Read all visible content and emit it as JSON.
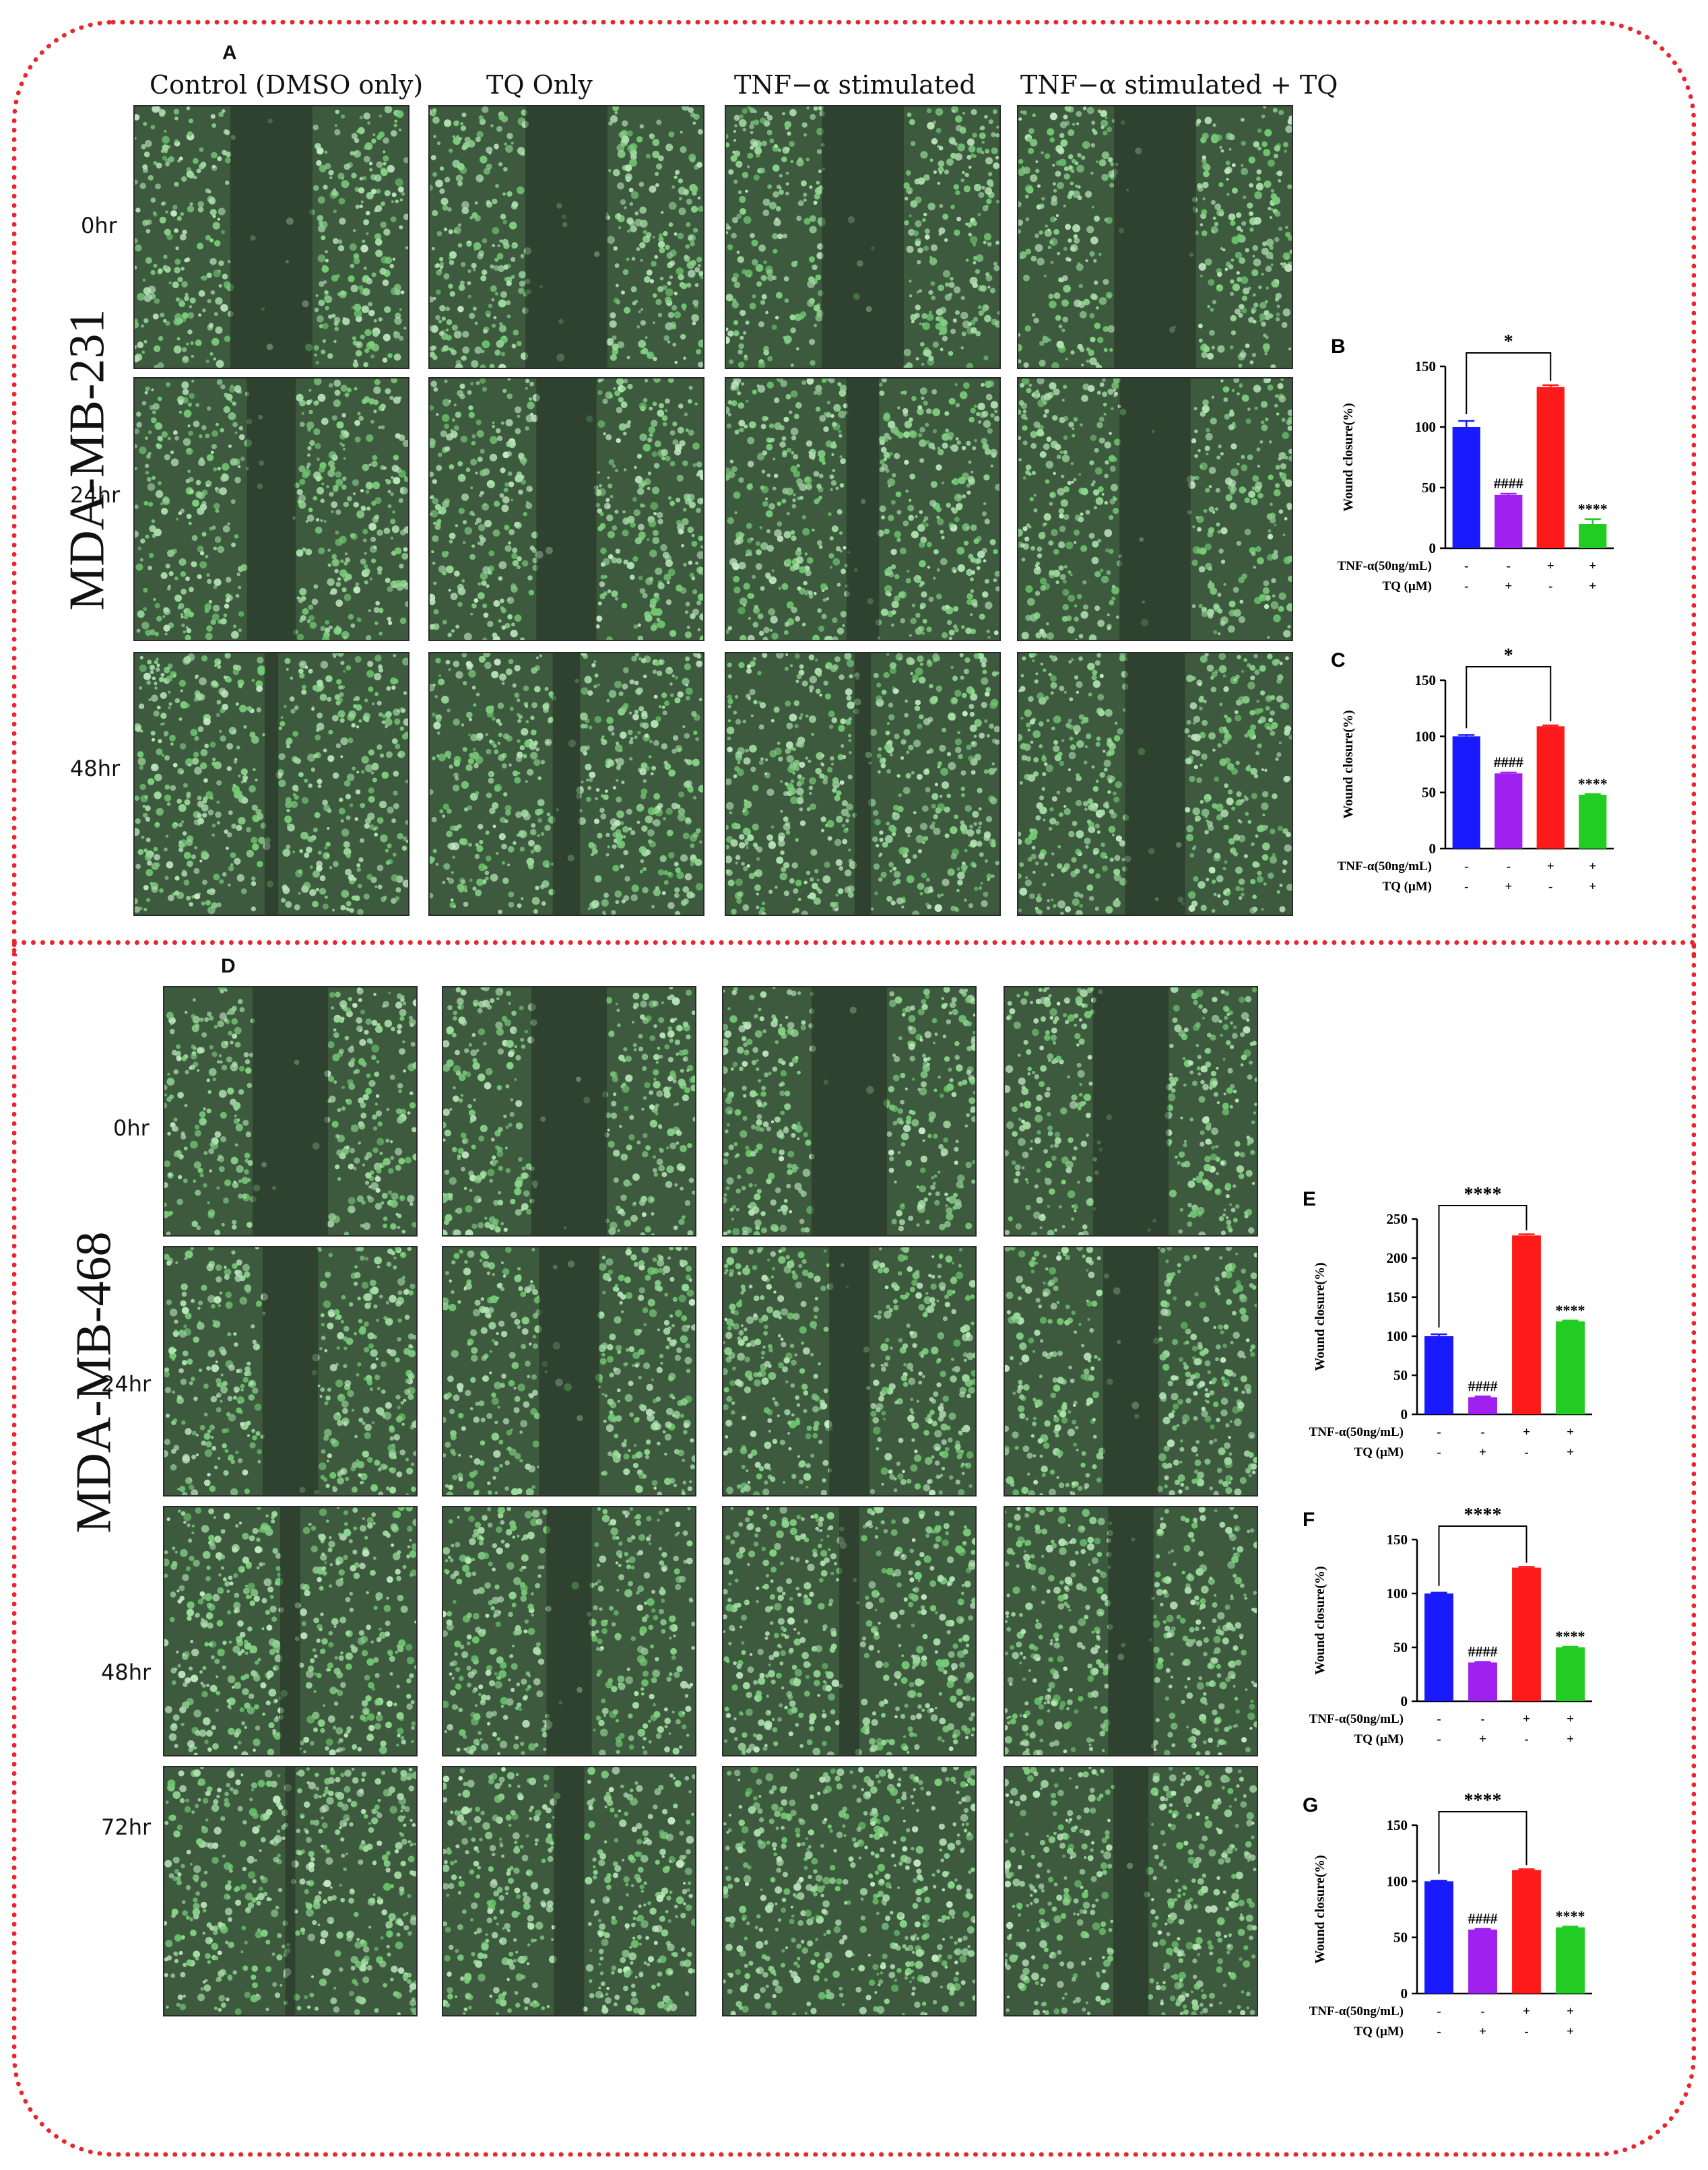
{
  "figure": {
    "panel_A": "A",
    "panel_D": "D",
    "cell_line_top": "MDA-MB-231",
    "cell_line_bottom": "MDA-MB-468",
    "columns": [
      "Control (DMSO only)",
      "TQ Only",
      "TNF−α stimulated",
      "TNF−α stimulated + TQ"
    ],
    "rows_top": [
      "0hr",
      "24hr",
      "48hr"
    ],
    "rows_bottom": [
      "0hr",
      "24hr",
      "48hr",
      "72hr"
    ]
  },
  "colors": {
    "frame": "#e8262d",
    "control": "#1a1aff",
    "tq": "#a020f0",
    "tnf": "#ff1a1a",
    "tnf_tq": "#22cc22",
    "cell_green": "#7ec88a",
    "gap_dark": "#243024"
  },
  "micrographs": {
    "top": [
      [
        0.3,
        0.3,
        0.3,
        0.3
      ],
      [
        0.18,
        0.22,
        0.12,
        0.26
      ],
      [
        0.05,
        0.1,
        0.06,
        0.22
      ]
    ],
    "bottom": [
      [
        0.3,
        0.3,
        0.3,
        0.3
      ],
      [
        0.22,
        0.24,
        0.16,
        0.22
      ],
      [
        0.08,
        0.18,
        0.08,
        0.18
      ],
      [
        0.04,
        0.12,
        0.0,
        0.14
      ]
    ]
  },
  "chart_data": [
    {
      "panel": "B",
      "type": "bar",
      "ylabel": "Wound closure(%)",
      "ylim": [
        0,
        150
      ],
      "yticks": [
        0,
        50,
        100,
        150
      ],
      "values": [
        100,
        44,
        133,
        20
      ],
      "errors": [
        5,
        1,
        1.5,
        4
      ],
      "annotations": [
        "",
        "####",
        "",
        "****"
      ],
      "bracket": {
        "from": 0,
        "to": 2,
        "label": "*"
      },
      "rows": [
        {
          "label": "TNF-α(50ng/mL)",
          "marks": [
            "-",
            "-",
            "+",
            "+"
          ]
        },
        {
          "label": "TQ (μM)",
          "marks": [
            "-",
            "+",
            "-",
            "+"
          ]
        }
      ]
    },
    {
      "panel": "C",
      "type": "bar",
      "ylabel": "Wound closure(%)",
      "ylim": [
        0,
        150
      ],
      "yticks": [
        0,
        50,
        100,
        150
      ],
      "values": [
        100,
        67,
        109,
        48
      ],
      "errors": [
        1.2,
        0.8,
        0.8,
        0.6
      ],
      "annotations": [
        "",
        "####",
        "",
        "****"
      ],
      "bracket": {
        "from": 0,
        "to": 2,
        "label": "*"
      },
      "rows": [
        {
          "label": "TNF-α(50ng/mL)",
          "marks": [
            "-",
            "-",
            "+",
            "+"
          ]
        },
        {
          "label": "TQ (μM)",
          "marks": [
            "-",
            "+",
            "-",
            "+"
          ]
        }
      ]
    },
    {
      "panel": "E",
      "type": "bar",
      "ylabel": "Wound closure(%)",
      "ylim": [
        0,
        250
      ],
      "yticks": [
        0,
        50,
        100,
        150,
        200,
        250
      ],
      "values": [
        100,
        22,
        229,
        119
      ],
      "errors": [
        2.5,
        1,
        1.5,
        1
      ],
      "annotations": [
        "",
        "####",
        "",
        "****"
      ],
      "bracket": {
        "from": 0,
        "to": 2,
        "label": "****"
      },
      "rows": [
        {
          "label": "TNF-α(50ng/mL)",
          "marks": [
            "-",
            "-",
            "+",
            "+"
          ]
        },
        {
          "label": "TQ (μM)",
          "marks": [
            "-",
            "+",
            "-",
            "+"
          ]
        }
      ]
    },
    {
      "panel": "F",
      "type": "bar",
      "ylabel": "Wound closure(%)",
      "ylim": [
        0,
        150
      ],
      "yticks": [
        0,
        50,
        100,
        150
      ],
      "values": [
        100,
        36,
        124,
        50
      ],
      "errors": [
        0.8,
        0.6,
        0.8,
        0.6
      ],
      "annotations": [
        "",
        "####",
        "",
        "****"
      ],
      "bracket": {
        "from": 0,
        "to": 2,
        "label": "****"
      },
      "rows": [
        {
          "label": "TNF-α(50ng/mL)",
          "marks": [
            "-",
            "-",
            "+",
            "+"
          ]
        },
        {
          "label": "TQ (μM)",
          "marks": [
            "-",
            "+",
            "-",
            "+"
          ]
        }
      ]
    },
    {
      "panel": "G",
      "type": "bar",
      "ylabel": "Wound closure(%)",
      "ylim": [
        0,
        150
      ],
      "yticks": [
        0,
        50,
        100,
        150
      ],
      "values": [
        100,
        57,
        110,
        59
      ],
      "errors": [
        0.6,
        0.6,
        0.8,
        0.6
      ],
      "annotations": [
        "",
        "####",
        "",
        "****"
      ],
      "bracket": {
        "from": 0,
        "to": 2,
        "label": "****"
      },
      "rows": [
        {
          "label": "TNF-α(50ng/mL)",
          "marks": [
            "-",
            "-",
            "+",
            "+"
          ]
        },
        {
          "label": "TQ (μM)",
          "marks": [
            "-",
            "+",
            "-",
            "+"
          ]
        }
      ]
    }
  ]
}
